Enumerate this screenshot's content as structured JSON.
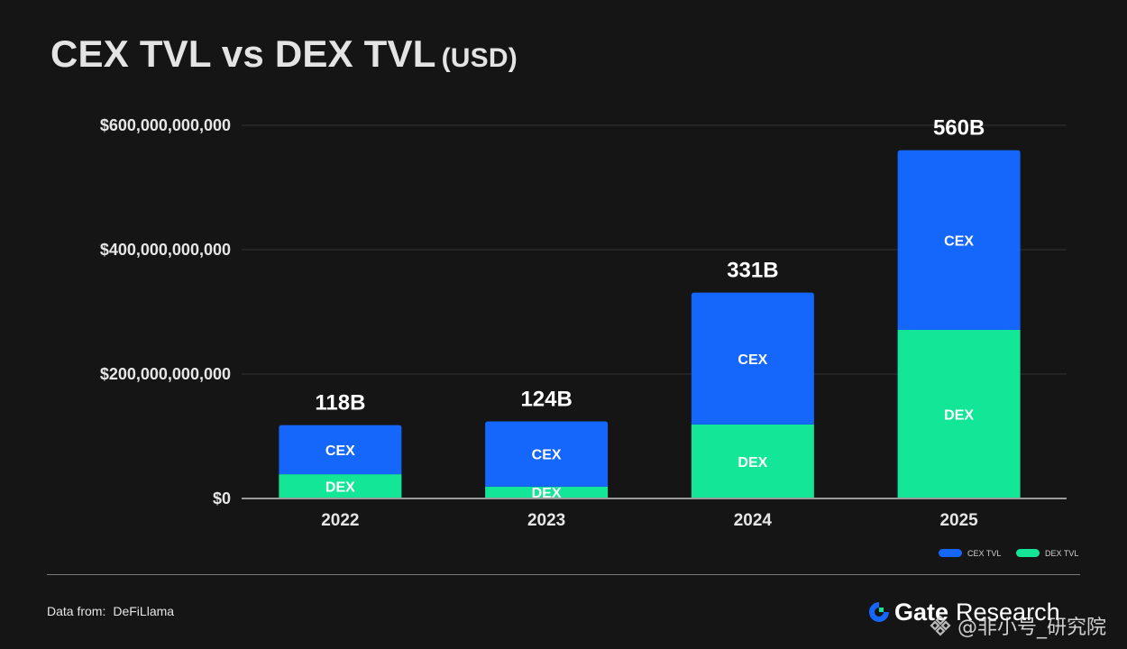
{
  "header": {
    "title": "CEX TVL vs DEX TVL",
    "unit": "(USD)"
  },
  "colors": {
    "background": "#151515",
    "cex": "#1566fb",
    "dex": "#14e698",
    "grid": "#333333",
    "axis": "#9a9a9a",
    "text": "#e6e6e6"
  },
  "chart_data": {
    "type": "bar",
    "stacked": true,
    "title": "CEX TVL vs DEX TVL (USD)",
    "xlabel": "",
    "ylabel": "",
    "categories": [
      "2022",
      "2023",
      "2024",
      "2025"
    ],
    "series": [
      {
        "name": "DEX TVL",
        "segment_label": "DEX",
        "color": "#14e698",
        "values": [
          39,
          19,
          119,
          271
        ]
      },
      {
        "name": "CEX TVL",
        "segment_label": "CEX",
        "color": "#1566fb",
        "values": [
          79,
          105,
          212,
          289
        ]
      }
    ],
    "value_unit": "billion USD",
    "total_labels": [
      "118B",
      "124B",
      "331B",
      "560B"
    ],
    "totals": [
      118,
      124,
      331,
      560
    ],
    "ylim": [
      0,
      600
    ],
    "yticks": [
      0,
      200,
      400,
      600
    ],
    "ytick_labels": [
      "$0",
      "$200,000,000,000",
      "$400,000,000,000",
      "$600,000,000,000"
    ],
    "grid": true,
    "legend": {
      "position": "bottom-right",
      "entries": [
        "CEX TVL",
        "DEX TVL"
      ]
    }
  },
  "footer": {
    "source_label": "Data from:",
    "source_name": "DeFiLlama",
    "brand_name": "Gate",
    "brand_sub": "Research",
    "watermark": "@非小号_研究院"
  }
}
